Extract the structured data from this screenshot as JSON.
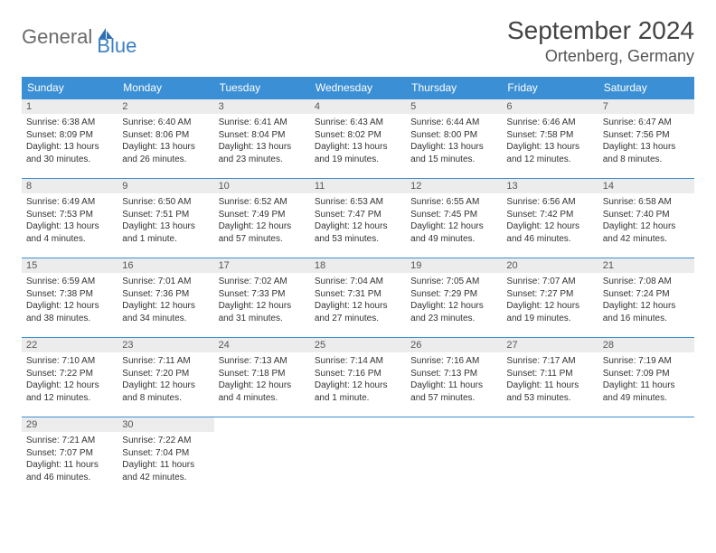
{
  "logo": {
    "word1": "General",
    "word2": "Blue"
  },
  "title": "September 2024",
  "location": "Ortenberg, Germany",
  "colors": {
    "header_bg": "#3b8fd4",
    "header_text": "#ffffff",
    "daynum_bg": "#ececec",
    "body_text": "#333333",
    "logo_gray": "#6b6b6b",
    "logo_blue": "#3b7fc4",
    "border": "#3b8fd4"
  },
  "typography": {
    "title_fontsize": 28,
    "location_fontsize": 18,
    "dayhead_fontsize": 12,
    "daynum_fontsize": 11,
    "cell_fontsize": 10
  },
  "weekdays": [
    "Sunday",
    "Monday",
    "Tuesday",
    "Wednesday",
    "Thursday",
    "Friday",
    "Saturday"
  ],
  "days": [
    {
      "n": "1",
      "sunrise": "Sunrise: 6:38 AM",
      "sunset": "Sunset: 8:09 PM",
      "daylight": "Daylight: 13 hours and 30 minutes."
    },
    {
      "n": "2",
      "sunrise": "Sunrise: 6:40 AM",
      "sunset": "Sunset: 8:06 PM",
      "daylight": "Daylight: 13 hours and 26 minutes."
    },
    {
      "n": "3",
      "sunrise": "Sunrise: 6:41 AM",
      "sunset": "Sunset: 8:04 PM",
      "daylight": "Daylight: 13 hours and 23 minutes."
    },
    {
      "n": "4",
      "sunrise": "Sunrise: 6:43 AM",
      "sunset": "Sunset: 8:02 PM",
      "daylight": "Daylight: 13 hours and 19 minutes."
    },
    {
      "n": "5",
      "sunrise": "Sunrise: 6:44 AM",
      "sunset": "Sunset: 8:00 PM",
      "daylight": "Daylight: 13 hours and 15 minutes."
    },
    {
      "n": "6",
      "sunrise": "Sunrise: 6:46 AM",
      "sunset": "Sunset: 7:58 PM",
      "daylight": "Daylight: 13 hours and 12 minutes."
    },
    {
      "n": "7",
      "sunrise": "Sunrise: 6:47 AM",
      "sunset": "Sunset: 7:56 PM",
      "daylight": "Daylight: 13 hours and 8 minutes."
    },
    {
      "n": "8",
      "sunrise": "Sunrise: 6:49 AM",
      "sunset": "Sunset: 7:53 PM",
      "daylight": "Daylight: 13 hours and 4 minutes."
    },
    {
      "n": "9",
      "sunrise": "Sunrise: 6:50 AM",
      "sunset": "Sunset: 7:51 PM",
      "daylight": "Daylight: 13 hours and 1 minute."
    },
    {
      "n": "10",
      "sunrise": "Sunrise: 6:52 AM",
      "sunset": "Sunset: 7:49 PM",
      "daylight": "Daylight: 12 hours and 57 minutes."
    },
    {
      "n": "11",
      "sunrise": "Sunrise: 6:53 AM",
      "sunset": "Sunset: 7:47 PM",
      "daylight": "Daylight: 12 hours and 53 minutes."
    },
    {
      "n": "12",
      "sunrise": "Sunrise: 6:55 AM",
      "sunset": "Sunset: 7:45 PM",
      "daylight": "Daylight: 12 hours and 49 minutes."
    },
    {
      "n": "13",
      "sunrise": "Sunrise: 6:56 AM",
      "sunset": "Sunset: 7:42 PM",
      "daylight": "Daylight: 12 hours and 46 minutes."
    },
    {
      "n": "14",
      "sunrise": "Sunrise: 6:58 AM",
      "sunset": "Sunset: 7:40 PM",
      "daylight": "Daylight: 12 hours and 42 minutes."
    },
    {
      "n": "15",
      "sunrise": "Sunrise: 6:59 AM",
      "sunset": "Sunset: 7:38 PM",
      "daylight": "Daylight: 12 hours and 38 minutes."
    },
    {
      "n": "16",
      "sunrise": "Sunrise: 7:01 AM",
      "sunset": "Sunset: 7:36 PM",
      "daylight": "Daylight: 12 hours and 34 minutes."
    },
    {
      "n": "17",
      "sunrise": "Sunrise: 7:02 AM",
      "sunset": "Sunset: 7:33 PM",
      "daylight": "Daylight: 12 hours and 31 minutes."
    },
    {
      "n": "18",
      "sunrise": "Sunrise: 7:04 AM",
      "sunset": "Sunset: 7:31 PM",
      "daylight": "Daylight: 12 hours and 27 minutes."
    },
    {
      "n": "19",
      "sunrise": "Sunrise: 7:05 AM",
      "sunset": "Sunset: 7:29 PM",
      "daylight": "Daylight: 12 hours and 23 minutes."
    },
    {
      "n": "20",
      "sunrise": "Sunrise: 7:07 AM",
      "sunset": "Sunset: 7:27 PM",
      "daylight": "Daylight: 12 hours and 19 minutes."
    },
    {
      "n": "21",
      "sunrise": "Sunrise: 7:08 AM",
      "sunset": "Sunset: 7:24 PM",
      "daylight": "Daylight: 12 hours and 16 minutes."
    },
    {
      "n": "22",
      "sunrise": "Sunrise: 7:10 AM",
      "sunset": "Sunset: 7:22 PM",
      "daylight": "Daylight: 12 hours and 12 minutes."
    },
    {
      "n": "23",
      "sunrise": "Sunrise: 7:11 AM",
      "sunset": "Sunset: 7:20 PM",
      "daylight": "Daylight: 12 hours and 8 minutes."
    },
    {
      "n": "24",
      "sunrise": "Sunrise: 7:13 AM",
      "sunset": "Sunset: 7:18 PM",
      "daylight": "Daylight: 12 hours and 4 minutes."
    },
    {
      "n": "25",
      "sunrise": "Sunrise: 7:14 AM",
      "sunset": "Sunset: 7:16 PM",
      "daylight": "Daylight: 12 hours and 1 minute."
    },
    {
      "n": "26",
      "sunrise": "Sunrise: 7:16 AM",
      "sunset": "Sunset: 7:13 PM",
      "daylight": "Daylight: 11 hours and 57 minutes."
    },
    {
      "n": "27",
      "sunrise": "Sunrise: 7:17 AM",
      "sunset": "Sunset: 7:11 PM",
      "daylight": "Daylight: 11 hours and 53 minutes."
    },
    {
      "n": "28",
      "sunrise": "Sunrise: 7:19 AM",
      "sunset": "Sunset: 7:09 PM",
      "daylight": "Daylight: 11 hours and 49 minutes."
    },
    {
      "n": "29",
      "sunrise": "Sunrise: 7:21 AM",
      "sunset": "Sunset: 7:07 PM",
      "daylight": "Daylight: 11 hours and 46 minutes."
    },
    {
      "n": "30",
      "sunrise": "Sunrise: 7:22 AM",
      "sunset": "Sunset: 7:04 PM",
      "daylight": "Daylight: 11 hours and 42 minutes."
    }
  ]
}
